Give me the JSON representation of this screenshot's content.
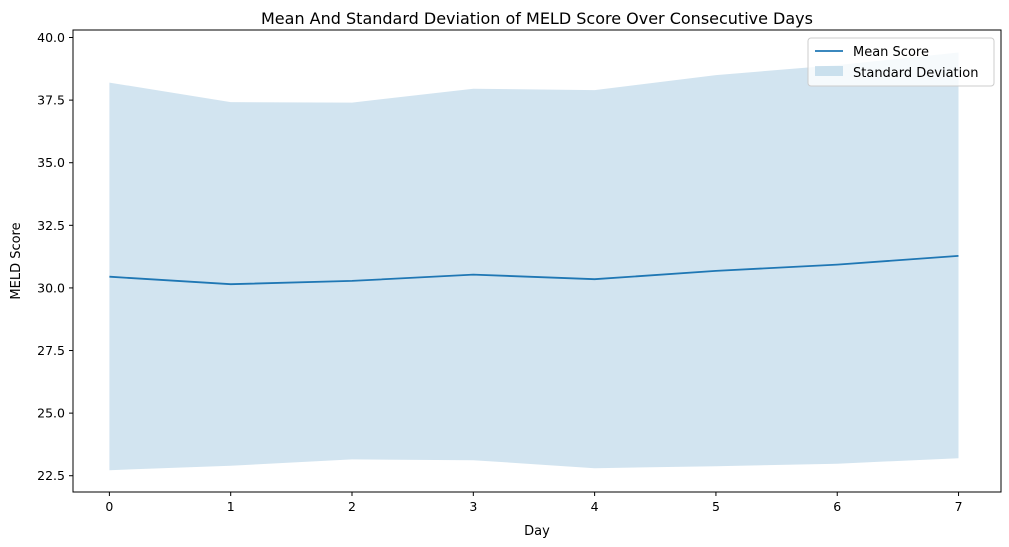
{
  "chart_data": {
    "type": "area",
    "title": "Mean And Standard Deviation of MELD Score Over Consecutive Days",
    "xlabel": "Day",
    "ylabel": "MELD Score",
    "x": [
      0,
      1,
      2,
      3,
      4,
      5,
      6,
      7
    ],
    "xticks": [
      "0",
      "1",
      "2",
      "3",
      "4",
      "5",
      "6",
      "7"
    ],
    "yticks": [
      "22.5",
      "25.0",
      "27.5",
      "30.0",
      "32.5",
      "35.0",
      "37.5",
      "40.0"
    ],
    "xlim": [
      -0.3,
      7.35
    ],
    "ylim": [
      21.85,
      40.3
    ],
    "grid": false,
    "legend": "top-right",
    "series": [
      {
        "name": "Mean Score",
        "kind": "line",
        "color": "#1f77b4",
        "values": [
          30.45,
          30.15,
          30.28,
          30.53,
          30.35,
          30.68,
          30.93,
          31.28
        ]
      },
      {
        "name": "Standard Deviation",
        "kind": "band",
        "color": "#1f77b4",
        "opacity": 0.2,
        "upper": [
          38.2,
          37.42,
          37.4,
          37.95,
          37.9,
          38.5,
          38.9,
          39.4
        ],
        "lower": [
          22.72,
          22.9,
          23.15,
          23.12,
          22.8,
          22.88,
          22.98,
          23.2
        ]
      }
    ]
  }
}
